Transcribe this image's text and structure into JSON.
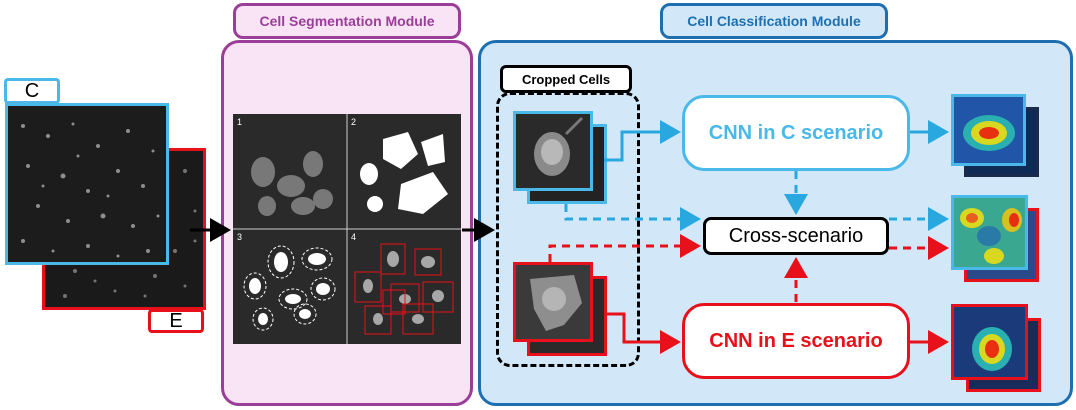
{
  "input": {
    "c_label": "C",
    "e_label": "E"
  },
  "segmentation": {
    "title": "Cell Segmentation Module",
    "panel_labels": [
      "1",
      "2",
      "3",
      "4"
    ]
  },
  "classification": {
    "title": "Cell Classification Module",
    "cropped_title": "Cropped Cells",
    "cnn_c": "CNN in C scenario",
    "cnn_e": "CNN in E scenario",
    "cross": "Cross-scenario"
  },
  "colors": {
    "c_blue": "#4ab8e8",
    "e_red": "#e8101a",
    "seg_purple": "#9a3e98",
    "cls_blue": "#1e6fb0",
    "seg_fill": "#f8e4f4",
    "cls_fill": "#d2e8f8"
  }
}
